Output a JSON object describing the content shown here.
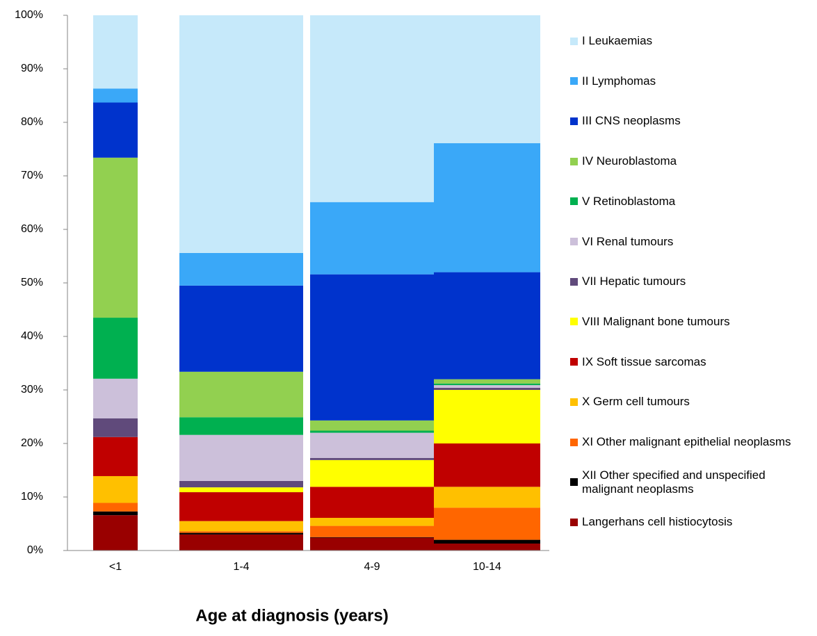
{
  "chart_data": {
    "type": "stacked_bar",
    "x_label": "Age at diagnosis (years)",
    "categories": [
      "<1",
      "1-4",
      "4-9",
      "10-14"
    ],
    "ylim": [
      0,
      100
    ],
    "yticks": [
      {
        "value": 0,
        "label": "0%"
      },
      {
        "value": 10,
        "label": "10%"
      },
      {
        "value": 20,
        "label": "20%"
      },
      {
        "value": 30,
        "label": "30%"
      },
      {
        "value": 40,
        "label": "40%"
      },
      {
        "value": 50,
        "label": "50%"
      },
      {
        "value": 60,
        "label": "60%"
      },
      {
        "value": 70,
        "label": "70%"
      },
      {
        "value": 80,
        "label": "80%"
      },
      {
        "value": 90,
        "label": "90%"
      },
      {
        "value": 100,
        "label": "100%"
      }
    ],
    "legend": "right",
    "series": [
      {
        "name": "I Leukaemias",
        "color": "#c6e9fa",
        "values": [
          13.7,
          44.4,
          34.9,
          23.9
        ]
      },
      {
        "name": "II Lymphomas",
        "color": "#3aa8f8",
        "values": [
          2.6,
          6.1,
          13.5,
          24.1
        ]
      },
      {
        "name": "III CNS neoplasms",
        "color": "#0033cc",
        "values": [
          10.3,
          16.1,
          27.3,
          20
        ]
      },
      {
        "name": "IV Neuroblastoma",
        "color": "#92d050",
        "values": [
          29.9,
          8.5,
          1.9,
          0.8
        ]
      },
      {
        "name": "V Retinoblastoma",
        "color": "#00b050",
        "values": [
          11.4,
          3.3,
          0.4,
          0.3
        ]
      },
      {
        "name": "VI Renal tumours",
        "color": "#ccc0da",
        "values": [
          7.4,
          8.6,
          4.7,
          0.5
        ]
      },
      {
        "name": "VII Hepatic tumours",
        "color": "#604a7b",
        "values": [
          3.5,
          1.2,
          0.4,
          0.4
        ]
      },
      {
        "name": "VIII Malignant bone tumours",
        "color": "#ffff00",
        "values": [
          0,
          0.9,
          5.0,
          10.0
        ]
      },
      {
        "name": "IX Soft tissue sarcomas",
        "color": "#c00000",
        "values": [
          7.3,
          5.4,
          5.8,
          8.1
        ]
      },
      {
        "name": "X Germ cell tumours",
        "color": "#ffc000",
        "values": [
          5.0,
          1.9,
          1.5,
          3.9
        ]
      },
      {
        "name": "XI Other malignant epithelial neoplasms",
        "color": "#ff6600",
        "values": [
          1.6,
          0.3,
          2.1,
          6.0
        ]
      },
      {
        "name": "XII Other specified and unspecified malignant neoplasms",
        "color": "#000000",
        "values": [
          0.7,
          0.3,
          0.1,
          0.7
        ]
      },
      {
        "name": "Langerhans cell histiocytosis",
        "color": "#990000",
        "values": [
          6.6,
          3.0,
          2.4,
          1.3
        ]
      }
    ]
  }
}
